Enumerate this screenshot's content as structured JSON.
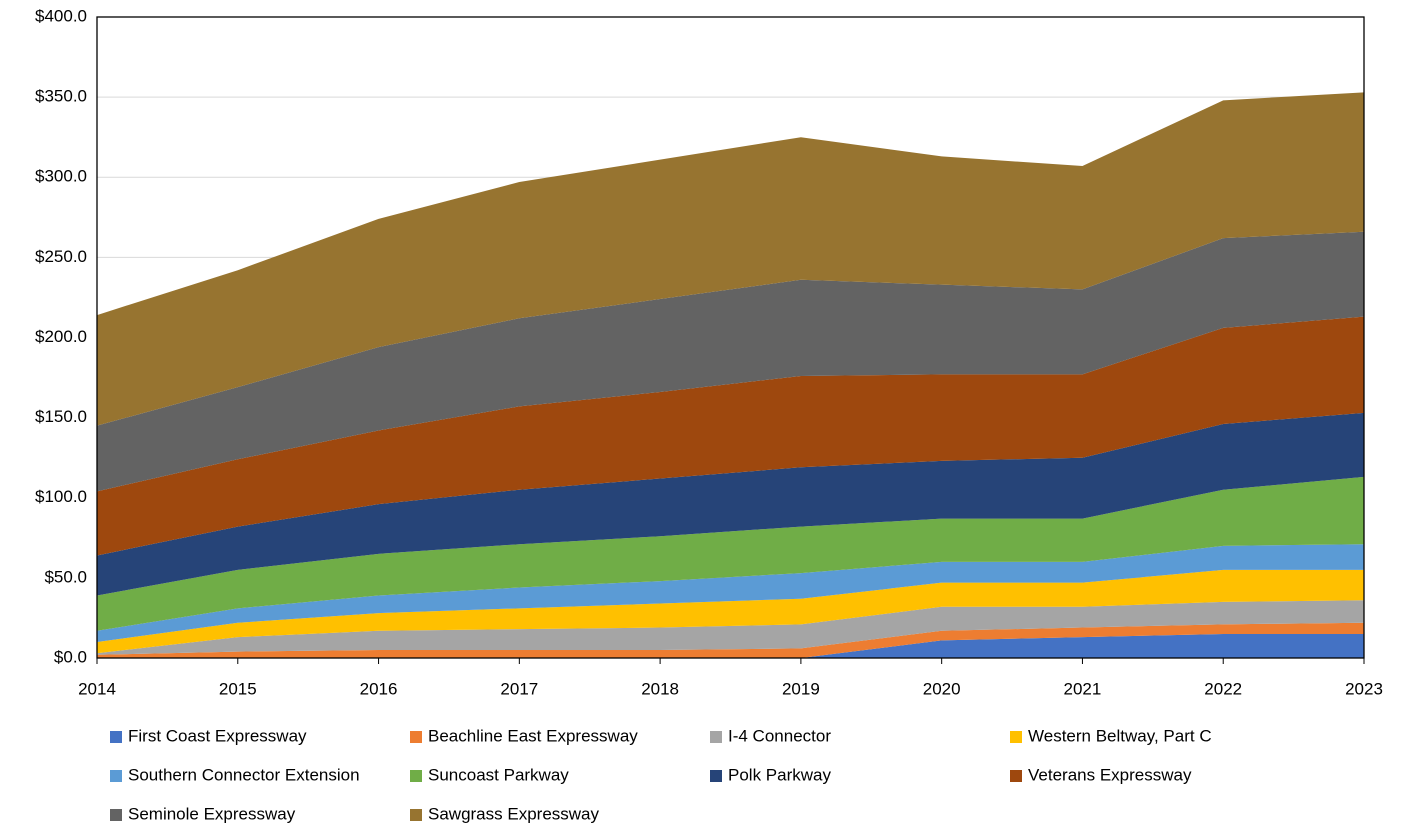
{
  "chart_data": {
    "type": "stacked_area",
    "x": [
      2014,
      2015,
      2016,
      2017,
      2018,
      2019,
      2020,
      2021,
      2022,
      2023
    ],
    "xlim": [
      2014,
      2023
    ],
    "xticks": [
      2014,
      2015,
      2016,
      2017,
      2018,
      2019,
      2020,
      2021,
      2022,
      2023
    ],
    "ylim": [
      0,
      400
    ],
    "yticks": [
      {
        "value": 0,
        "label": "$0.0"
      },
      {
        "value": 50,
        "label": "$50.0"
      },
      {
        "value": 100,
        "label": "$100.0"
      },
      {
        "value": 150,
        "label": "$150.0"
      },
      {
        "value": 200,
        "label": "$200.0"
      },
      {
        "value": 250,
        "label": "$250.0"
      },
      {
        "value": 300,
        "label": "$300.0"
      },
      {
        "value": 350,
        "label": "$350.0"
      },
      {
        "value": 400,
        "label": "$400.0"
      }
    ],
    "grid": true,
    "legend": "bottom",
    "series": [
      {
        "name": "First Coast Expressway",
        "color": "#4472c4",
        "values": [
          0,
          0,
          0,
          0,
          0,
          0,
          11,
          13,
          15,
          15
        ]
      },
      {
        "name": "Beachline East Expressway",
        "color": "#ed7d31",
        "values": [
          2,
          4,
          5,
          5,
          5,
          6,
          6,
          6,
          6,
          7
        ]
      },
      {
        "name": "I-4 Connector",
        "color": "#a5a5a5",
        "values": [
          1,
          9,
          12,
          13,
          14,
          15,
          15,
          13,
          14,
          14
        ]
      },
      {
        "name": "Western Beltway, Part C",
        "color": "#ffc000",
        "values": [
          7,
          9,
          11,
          13,
          15,
          16,
          15,
          15,
          20,
          19
        ]
      },
      {
        "name": "Southern Connector Extension",
        "color": "#5b9bd5",
        "values": [
          7,
          9,
          11,
          13,
          14,
          16,
          13,
          13,
          15,
          16
        ]
      },
      {
        "name": "Suncoast Parkway",
        "color": "#70ad47",
        "values": [
          22,
          24,
          26,
          27,
          28,
          29,
          27,
          27,
          35,
          42
        ]
      },
      {
        "name": "Polk Parkway",
        "color": "#264478",
        "values": [
          25,
          27,
          31,
          34,
          36,
          37,
          36,
          38,
          41,
          40
        ]
      },
      {
        "name": "Veterans Expressway",
        "color": "#9e480e",
        "values": [
          40,
          42,
          46,
          52,
          54,
          57,
          54,
          52,
          60,
          60
        ]
      },
      {
        "name": "Seminole Expressway",
        "color": "#636363",
        "values": [
          41,
          45,
          52,
          55,
          58,
          60,
          56,
          53,
          56,
          53
        ]
      },
      {
        "name": "Sawgrass Expressway",
        "color": "#977430",
        "values": [
          69,
          73,
          80,
          85,
          87,
          89,
          80,
          77,
          86,
          87
        ]
      }
    ]
  }
}
